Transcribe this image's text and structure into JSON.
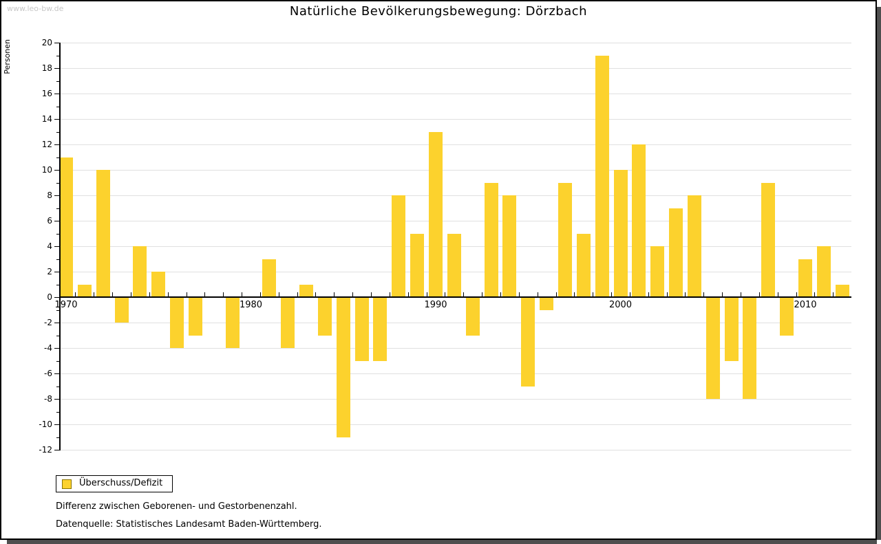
{
  "watermark": "www.leo-bw.de",
  "title": "Natürliche Bevölkerungsbewegung: Dörzbach",
  "legend": {
    "label": "Überschuss/Defizit"
  },
  "footnotes": {
    "line1": "Differenz zwischen Geborenen- und Gestorbenenzahl.",
    "line2": "Datenquelle: Statistisches Landesamt Baden-Württemberg."
  },
  "colors": {
    "bar": "#fcd22d",
    "legend_swatch_border": "#8a7400",
    "grid": "#e0e0e0",
    "axis": "#000000",
    "watermark": "#c6c6c6",
    "shadow": "#4f4f4f"
  },
  "chart_data": {
    "type": "bar",
    "title": "Natürliche Bevölkerungsbewegung: Dörzbach",
    "ylabel": "Personen",
    "xlabel": "",
    "ylim": [
      -12,
      20
    ],
    "y_major_step": 2,
    "y_minor_step": 1,
    "grid": "horizontal-major",
    "legend_position": "bottom-left",
    "series_name": "Überschuss/Defizit",
    "x": [
      1970,
      1971,
      1972,
      1973,
      1974,
      1975,
      1976,
      1977,
      1978,
      1979,
      1980,
      1981,
      1982,
      1983,
      1984,
      1985,
      1986,
      1987,
      1988,
      1989,
      1990,
      1991,
      1992,
      1993,
      1994,
      1995,
      1996,
      1997,
      1998,
      1999,
      2000,
      2001,
      2002,
      2003,
      2004,
      2005,
      2006,
      2007,
      2008,
      2009,
      2010,
      2011,
      2012
    ],
    "values": [
      11,
      1,
      10,
      -2,
      4,
      2,
      -4,
      -3,
      0,
      -4,
      0,
      3,
      -4,
      1,
      -3,
      -11,
      -5,
      -5,
      8,
      5,
      13,
      5,
      -3,
      9,
      8,
      -7,
      -1,
      9,
      5,
      19,
      10,
      12,
      4,
      7,
      8,
      -8,
      -5,
      -8,
      9,
      -3,
      3,
      4,
      1
    ],
    "x_axis_labeled_years": [
      1970,
      1980,
      1990,
      2000,
      2010
    ]
  }
}
